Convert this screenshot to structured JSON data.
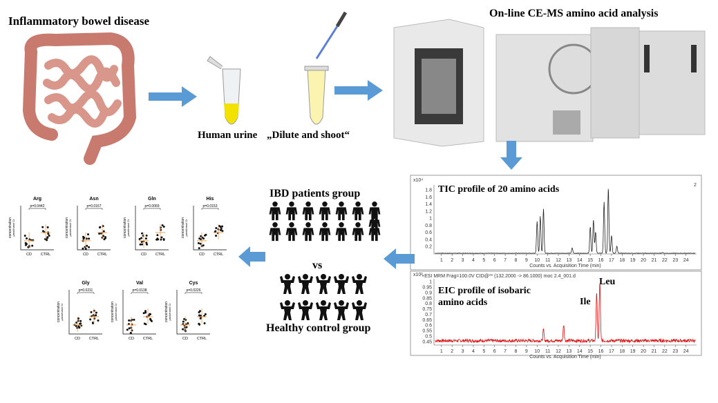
{
  "header": {
    "disease": "Inflammatory  bowel disease",
    "analysis": "On-line  CE-MS  amino acid analysis"
  },
  "steps": {
    "urine": "Human urine",
    "dilute": "„Dilute and shoot“"
  },
  "groups": {
    "ibd": "IBD patients group",
    "vs": "vs",
    "healthy": "Healthy control group"
  },
  "tic": {
    "multiplier": "x10⁴",
    "label": "TIC profile of 20 amino acids",
    "corner": "2",
    "yticks": [
      "0.2",
      "0.4",
      "0.6",
      "0.8",
      "1",
      "1.2",
      "1.4",
      "1.6",
      "1.8"
    ],
    "xticks": [
      "1",
      "2",
      "3",
      "4",
      "5",
      "6",
      "7",
      "8",
      "9",
      "10",
      "11",
      "12",
      "13",
      "14",
      "15",
      "16",
      "17",
      "18",
      "19",
      "20",
      "21",
      "22",
      "23",
      "24"
    ],
    "xlabel": "Counts vs. Acquisition Time (min)"
  },
  "eic": {
    "multiplier": "x10²",
    "header": "+ESI MRM Frag=100.0V CID@** (132.2000 -> 86.1000) moc 2.4_001.d",
    "label": "EIC profile of isobaric amino acids",
    "peak_ile": "Ile",
    "peak_leu": "Leu",
    "yticks": [
      "0.45",
      "0.5",
      "0.55",
      "0.6",
      "0.65",
      "0.7",
      "0.75",
      "0.8",
      "0.85",
      "0.9",
      "0.95",
      "1"
    ],
    "xticks": [
      "1",
      "2",
      "3",
      "4",
      "5",
      "6",
      "7",
      "8",
      "9",
      "10",
      "11",
      "12",
      "13",
      "14",
      "15",
      "16",
      "17",
      "18",
      "19",
      "20",
      "21",
      "22",
      "23",
      "24"
    ],
    "xlabel": "Counts vs. Acquisition Time (min)"
  },
  "plots": {
    "ylabel": "concentration",
    "yunit": "µmol/mmol Cr",
    "cd": "CD",
    "ctrl": "CTRL",
    "items": [
      {
        "title": "Arg",
        "p": "p=0.0442"
      },
      {
        "title": "Asn",
        "p": "p=0.0167"
      },
      {
        "title": "Gln",
        "p": "p=0.0069"
      },
      {
        "title": "His",
        "p": "p=0.0153"
      },
      {
        "title": "Gly",
        "p": "p=0.0211"
      },
      {
        "title": "Val",
        "p": "p=0.0138"
      },
      {
        "title": "Cys",
        "p": "p=0.0226"
      }
    ]
  }
}
